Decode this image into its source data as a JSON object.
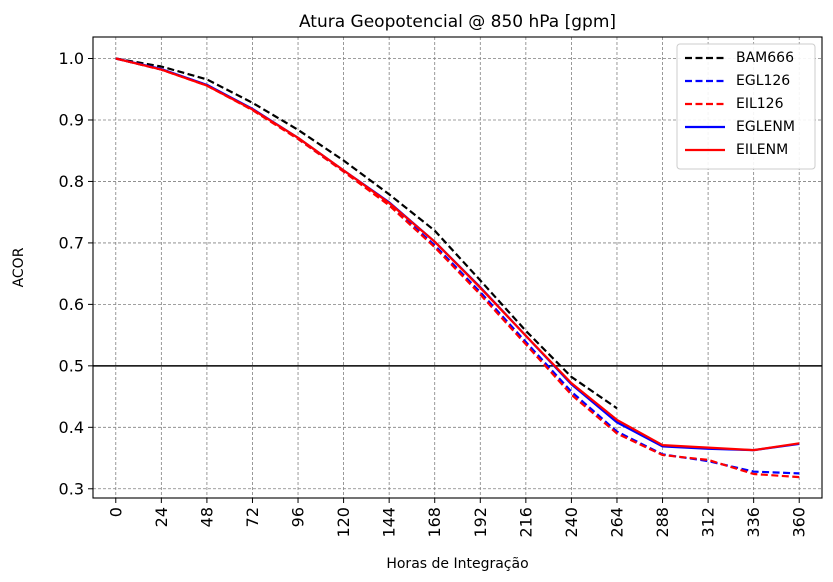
{
  "chart_data": {
    "type": "line",
    "title": "Atura Geopotencial @ 850 hPa [gpm]",
    "xlabel": "Horas de Integração",
    "ylabel": "ACOR",
    "x": [
      0,
      24,
      48,
      72,
      96,
      120,
      144,
      168,
      192,
      216,
      240,
      264,
      288,
      312,
      336,
      360
    ],
    "xtick_labels": [
      "0",
      "24",
      "48",
      "72",
      "96",
      "120",
      "144",
      "168",
      "192",
      "216",
      "240",
      "264",
      "288",
      "312",
      "336",
      "360"
    ],
    "ytick_values": [
      0.3,
      0.4,
      0.5,
      0.6,
      0.7,
      0.8,
      0.9,
      1.0
    ],
    "ytick_labels": [
      "0.3",
      "0.4",
      "0.5",
      "0.6",
      "0.7",
      "0.8",
      "0.9",
      "1.0"
    ],
    "xlim": [
      -12,
      372
    ],
    "ylim": [
      0.285,
      1.035
    ],
    "grid": true,
    "legend_position": "top-right",
    "reference_line": {
      "y": 0.5,
      "color": "#000000"
    },
    "series": [
      {
        "name": "BAM666",
        "color": "#000000",
        "dash": true,
        "values": [
          1.0,
          0.987,
          0.966,
          0.928,
          0.884,
          0.834,
          0.779,
          0.72,
          0.639,
          0.557,
          0.482,
          0.431,
          null,
          null,
          null,
          null
        ]
      },
      {
        "name": "EGL126",
        "color": "#0000ff",
        "dash": true,
        "values": [
          1.0,
          0.982,
          0.957,
          0.917,
          0.87,
          0.817,
          0.763,
          0.696,
          0.62,
          0.539,
          0.458,
          0.393,
          0.356,
          0.345,
          0.328,
          0.325
        ]
      },
      {
        "name": "EIL126",
        "color": "#ff0000",
        "dash": true,
        "values": [
          1.0,
          0.982,
          0.956,
          0.916,
          0.869,
          0.816,
          0.761,
          0.693,
          0.616,
          0.535,
          0.453,
          0.39,
          0.355,
          0.347,
          0.324,
          0.319
        ]
      },
      {
        "name": "EGLENM",
        "color": "#0000ff",
        "dash": false,
        "values": [
          1.0,
          0.983,
          0.957,
          0.918,
          0.871,
          0.818,
          0.766,
          0.702,
          0.628,
          0.549,
          0.47,
          0.408,
          0.369,
          0.365,
          0.363,
          0.373
        ]
      },
      {
        "name": "EILENM",
        "color": "#ff0000",
        "dash": false,
        "values": [
          1.0,
          0.982,
          0.956,
          0.917,
          0.871,
          0.818,
          0.765,
          0.702,
          0.627,
          0.549,
          0.472,
          0.412,
          0.371,
          0.367,
          0.363,
          0.374
        ]
      }
    ]
  }
}
